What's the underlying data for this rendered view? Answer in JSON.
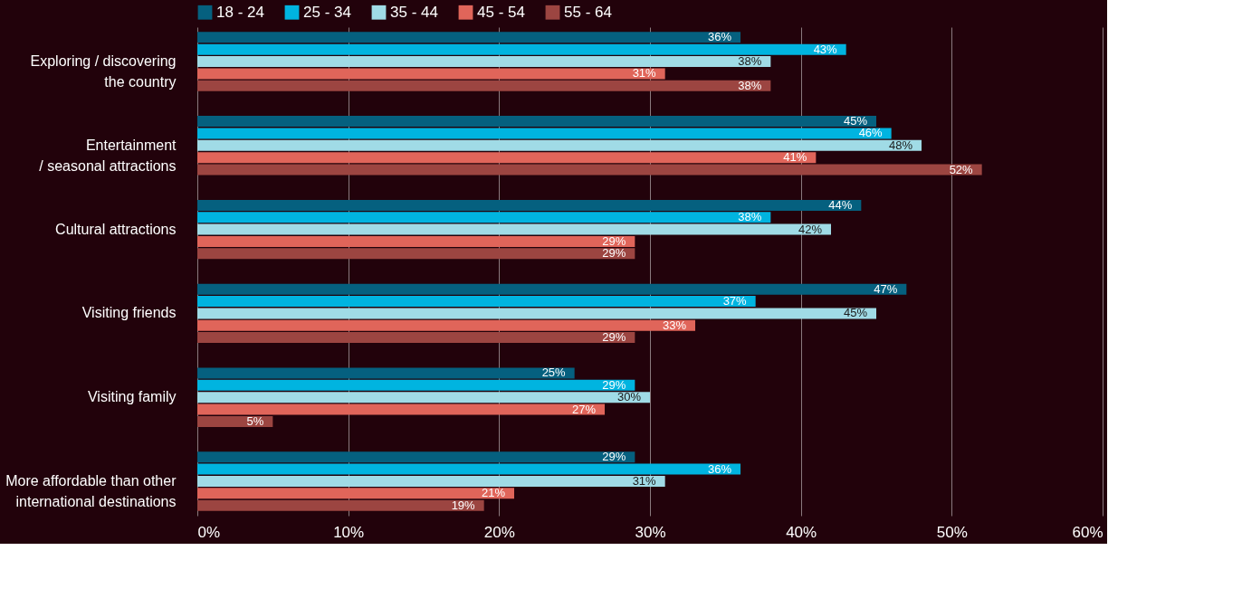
{
  "chart_data": {
    "type": "bar",
    "orientation": "horizontal",
    "categories": [
      "Exploring / discovering\nthe country",
      "Entertainment\n/ seasonal attractions",
      "Cultural attractions",
      "Visiting friends",
      "Visiting family",
      "More affordable than other\ninternational destinations"
    ],
    "series": [
      {
        "name": "18 - 24",
        "color": "#05607f",
        "values": [
          36,
          45,
          44,
          47,
          25,
          29
        ],
        "value_labels": [
          "36%",
          "45%",
          "44%",
          "47%",
          "25%",
          "29%"
        ]
      },
      {
        "name": "25 - 34",
        "color": "#00b4e0",
        "values": [
          43,
          46,
          38,
          37,
          29,
          36
        ],
        "value_labels": [
          "43%",
          "46%",
          "38%",
          "37%",
          "29%",
          "36%"
        ]
      },
      {
        "name": "35 - 44",
        "color": "#a0dbe6",
        "values": [
          38,
          48,
          42,
          45,
          30,
          31
        ],
        "value_labels": [
          "38%",
          "48%",
          "42%",
          "45%",
          "30%",
          "31%"
        ]
      },
      {
        "name": "45 - 54",
        "color": "#e0655a",
        "values": [
          31,
          41,
          29,
          33,
          27,
          21
        ],
        "value_labels": [
          "31%",
          "41%",
          "29%",
          "33%",
          "27%",
          "21%"
        ]
      },
      {
        "name": "55 - 64",
        "color": "#9c4541",
        "values": [
          38,
          52,
          29,
          29,
          5,
          19
        ],
        "value_labels": [
          "38%",
          "52%",
          "29%",
          "29%",
          "5%",
          "19%"
        ]
      }
    ],
    "xlim": [
      0,
      60
    ],
    "xticks": [
      {
        "value": 0,
        "label": "0%"
      },
      {
        "value": 10,
        "label": "10%"
      },
      {
        "value": 20,
        "label": "20%"
      },
      {
        "value": 30,
        "label": "30%"
      },
      {
        "value": 40,
        "label": "40%"
      },
      {
        "value": 50,
        "label": "50%"
      },
      {
        "value": 60,
        "label": "60%"
      }
    ],
    "grid": "x",
    "legend": "top"
  }
}
